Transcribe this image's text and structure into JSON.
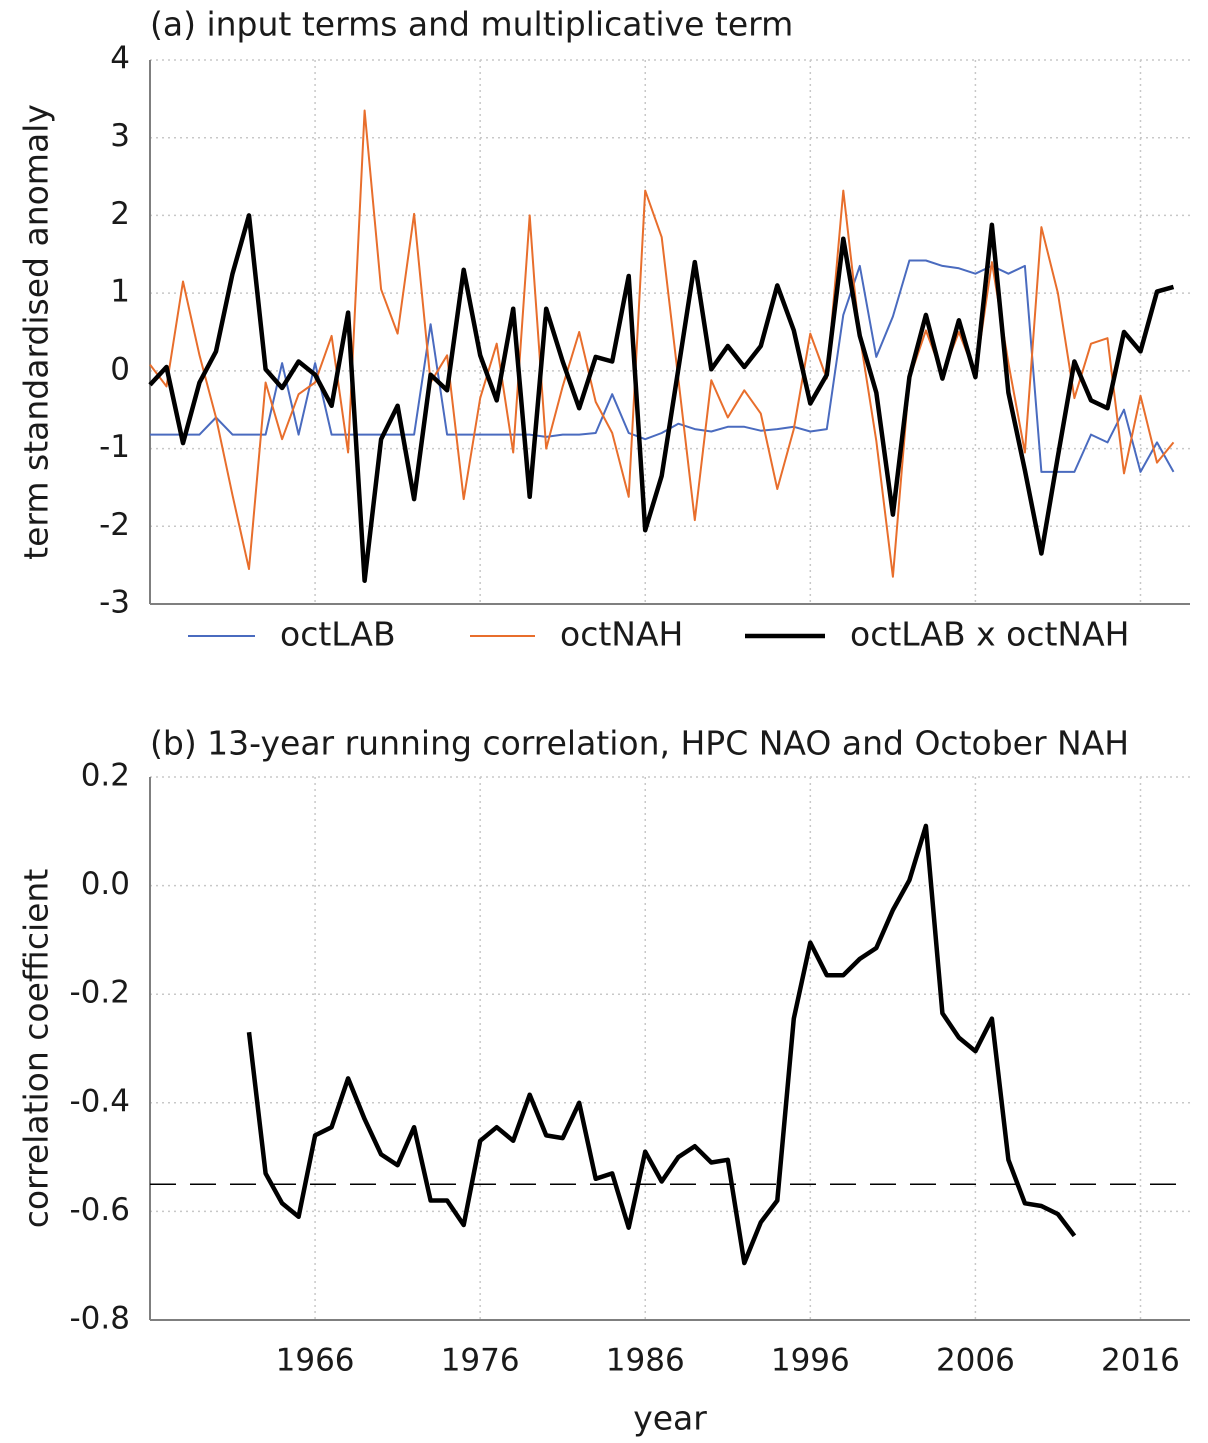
{
  "chart_data": [
    {
      "type": "line",
      "title": "(a) input terms and multiplicative term",
      "y_label": "term standardised anomaly",
      "x": [
        1956,
        1957,
        1958,
        1959,
        1960,
        1961,
        1962,
        1963,
        1964,
        1965,
        1966,
        1967,
        1968,
        1969,
        1970,
        1971,
        1972,
        1973,
        1974,
        1975,
        1976,
        1977,
        1978,
        1979,
        1980,
        1981,
        1982,
        1983,
        1984,
        1985,
        1986,
        1987,
        1988,
        1989,
        1990,
        1991,
        1992,
        1993,
        1994,
        1995,
        1996,
        1997,
        1998,
        1999,
        2000,
        2001,
        2002,
        2003,
        2004,
        2005,
        2006,
        2007,
        2008,
        2009,
        2010,
        2011,
        2012,
        2013,
        2014,
        2015,
        2016,
        2017,
        2018
      ],
      "xlim": [
        1956,
        2019
      ],
      "ylim": [
        -3,
        4
      ],
      "yticks": [
        -3,
        -2,
        -1,
        0,
        1,
        2,
        3,
        4
      ],
      "grid": true,
      "legend": "bottom",
      "series": [
        {
          "name": "octLAB",
          "color": "#4a6bbf",
          "values": [
            -0.82,
            -0.82,
            -0.82,
            -0.82,
            -0.6,
            -0.82,
            -0.82,
            -0.82,
            0.1,
            -0.82,
            0.1,
            -0.82,
            -0.82,
            -0.82,
            -0.82,
            -0.82,
            -0.82,
            0.6,
            -0.82,
            -0.82,
            -0.82,
            -0.82,
            -0.82,
            -0.82,
            -0.85,
            -0.82,
            -0.82,
            -0.8,
            -0.3,
            -0.8,
            -0.88,
            -0.8,
            -0.68,
            -0.75,
            -0.78,
            -0.72,
            -0.72,
            -0.77,
            -0.75,
            -0.72,
            -0.78,
            -0.75,
            0.72,
            1.35,
            0.18,
            0.7,
            1.42,
            1.42,
            1.35,
            1.32,
            1.25,
            1.35,
            1.25,
            1.35,
            -1.3,
            -1.3,
            -1.3,
            -0.82,
            -0.92,
            -0.5,
            -1.3,
            -0.92,
            -1.3
          ]
        },
        {
          "name": "octNAH",
          "color": "#e86e2c",
          "values": [
            0.08,
            -0.2,
            1.15,
            0.2,
            -0.6,
            -1.6,
            -2.55,
            -0.15,
            -0.88,
            -0.3,
            -0.15,
            0.45,
            -1.05,
            3.35,
            1.05,
            0.48,
            2.02,
            -0.15,
            0.2,
            -1.65,
            -0.35,
            0.35,
            -1.05,
            2.0,
            -1.0,
            -0.2,
            0.5,
            -0.4,
            -0.8,
            -1.62,
            2.32,
            1.72,
            -0.1,
            -1.92,
            -0.12,
            -0.6,
            -0.25,
            -0.55,
            -1.52,
            -0.75,
            0.48,
            -0.1,
            2.32,
            0.45,
            -0.9,
            -2.65,
            -0.1,
            0.52,
            -0.05,
            0.5,
            -0.05,
            1.4,
            0.1,
            -1.05,
            1.85,
            1.0,
            -0.35,
            0.35,
            0.42,
            -1.32,
            -0.32,
            -1.18,
            -0.92
          ]
        },
        {
          "name": "octLAB x octNAH",
          "color": "#000000",
          "values": [
            -0.18,
            0.05,
            -0.93,
            -0.15,
            0.25,
            1.25,
            2.0,
            0.02,
            -0.22,
            0.12,
            -0.05,
            -0.45,
            0.75,
            -2.7,
            -0.88,
            -0.45,
            -1.65,
            -0.05,
            -0.25,
            1.3,
            0.2,
            -0.38,
            0.8,
            -1.62,
            0.8,
            0.12,
            -0.48,
            0.18,
            0.12,
            1.22,
            -2.05,
            -1.35,
            0.02,
            1.4,
            0.02,
            0.32,
            0.05,
            0.32,
            1.1,
            0.52,
            -0.42,
            -0.05,
            1.7,
            0.45,
            -0.28,
            -1.85,
            -0.08,
            0.72,
            -0.1,
            0.65,
            -0.08,
            1.88,
            -0.28,
            -1.28,
            -2.35,
            -1.1,
            0.12,
            -0.38,
            -0.48,
            0.5,
            0.25,
            1.02,
            1.08
          ]
        }
      ]
    },
    {
      "type": "line",
      "title": "(b) 13-year running correlation, HPC NAO and October NAH",
      "y_label": "correlation coefficient",
      "x_label": "year",
      "x": [
        1962,
        1963,
        1964,
        1965,
        1966,
        1967,
        1968,
        1969,
        1970,
        1971,
        1972,
        1973,
        1974,
        1975,
        1976,
        1977,
        1978,
        1979,
        1980,
        1981,
        1982,
        1983,
        1984,
        1985,
        1986,
        1987,
        1988,
        1989,
        1990,
        1991,
        1992,
        1993,
        1994,
        1995,
        1996,
        1997,
        1998,
        1999,
        2000,
        2001,
        2002,
        2003,
        2004,
        2005,
        2006,
        2007,
        2008,
        2009,
        2010,
        2011,
        2012
      ],
      "xlim": [
        1956,
        2019
      ],
      "xticks": [
        1966,
        1976,
        1986,
        1996,
        2006,
        2016
      ],
      "ylim": [
        -0.8,
        0.2
      ],
      "yticks": [
        {
          "value": -0.8,
          "label": "-0.8"
        },
        {
          "value": -0.6,
          "label": "-0.6"
        },
        {
          "value": -0.4,
          "label": "-0.4"
        },
        {
          "value": -0.2,
          "label": "-0.2"
        },
        {
          "value": 0,
          "label": "0.0"
        },
        {
          "value": 0.2,
          "label": "0.2"
        }
      ],
      "grid": true,
      "hline": -0.55,
      "series": [
        {
          "color": "#000000",
          "values": [
            -0.27,
            -0.53,
            -0.585,
            -0.61,
            -0.46,
            -0.445,
            -0.355,
            -0.43,
            -0.495,
            -0.515,
            -0.445,
            -0.58,
            -0.58,
            -0.625,
            -0.47,
            -0.445,
            -0.47,
            -0.385,
            -0.46,
            -0.465,
            -0.4,
            -0.54,
            -0.53,
            -0.63,
            -0.49,
            -0.545,
            -0.5,
            -0.48,
            -0.51,
            -0.505,
            -0.695,
            -0.62,
            -0.58,
            -0.245,
            -0.105,
            -0.165,
            -0.165,
            -0.135,
            -0.115,
            -0.045,
            0.01,
            0.11,
            -0.235,
            -0.28,
            -0.305,
            -0.245,
            -0.505,
            -0.585,
            -0.59,
            -0.605,
            -0.645
          ]
        }
      ]
    }
  ]
}
